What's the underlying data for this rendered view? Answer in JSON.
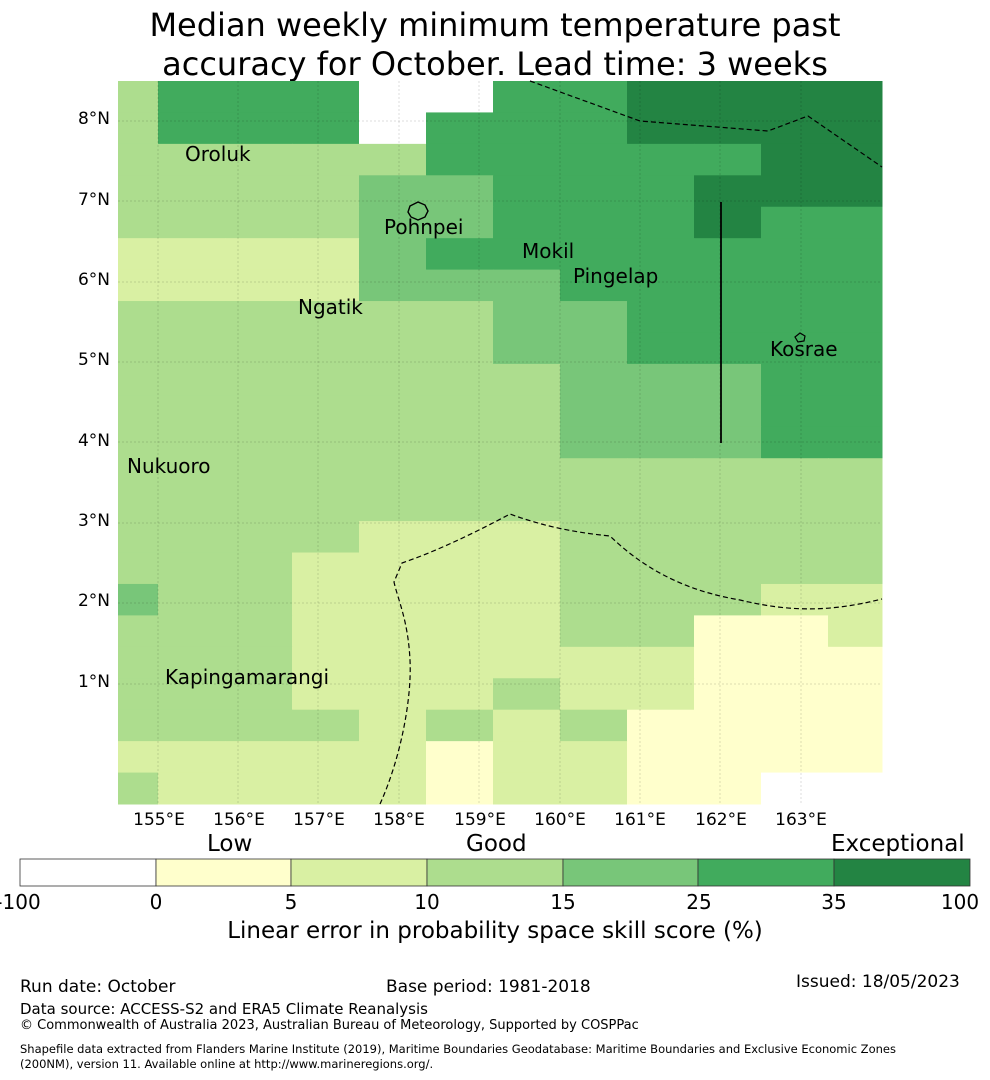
{
  "title": {
    "line1": "Median weekly minimum temperature past",
    "line2": "accuracy for October. Lead time: 3 weeks"
  },
  "map": {
    "lat_labels": [
      "8°N",
      "7°N",
      "6°N",
      "5°N",
      "4°N",
      "3°N",
      "2°N",
      "1°N"
    ],
    "lon_labels": [
      "155°E",
      "156°E",
      "157°E",
      "158°E",
      "159°E",
      "160°E",
      "161°E",
      "162°E",
      "163°E"
    ],
    "places": [
      "Oroluk",
      "Pohnpei",
      "Mokil",
      "Pingelap",
      "Ngatik",
      "Kosrae",
      "Nukuoro",
      "Kapingamarangi"
    ],
    "cell_grid": [
      "3555005566666",
      "3555055566666",
      "3333355555666",
      "3333445556666",
      "3333445556556",
      "2222455555556",
      "2222444555556",
      "3333334455556",
      "3333334455555",
      "3333333444555",
      "3333333444555",
      "3333333444555",
      "3333333333333",
      "3333333333333",
      "3333222333333",
      "3332222333333",
      "4332222333223",
      "3332222331123",
      "3332222221112",
      "3332223221112",
      "3333232311111",
      "2222212211111",
      "3222212211000"
    ]
  },
  "legend": {
    "categories": [
      "Low",
      "Good",
      "Exceptional"
    ],
    "ticks": [
      "-100",
      "0",
      "5",
      "10",
      "15",
      "25",
      "35",
      "100"
    ],
    "colors": [
      "#ffffff",
      "#ffffcc",
      "#d9f0a3",
      "#addd8e",
      "#78c679",
      "#41ab5d",
      "#238443"
    ],
    "axis_label": "Linear error in probability space skill score (%)"
  },
  "footer": {
    "run_date": "Run date: October",
    "base_period": "Base period: 1981-2018",
    "issued": "Issued: 18/05/2023",
    "data_source": "Data source: ACCESS-S2 and ERA5 Climate Reanalysis",
    "copyright": "© Commonwealth of Australia 2023, Australian Bureau of Meteorology, Supported by COSPPac",
    "shapefile_line1": "Shapefile data extracted from Flanders Marine Institute (2019), Maritime Boundaries Geodatabase: Maritime Boundaries and Exclusive Economic Zones",
    "shapefile_line2": "(200NM), version 11. Available online at http://www.marineregions.org/."
  }
}
